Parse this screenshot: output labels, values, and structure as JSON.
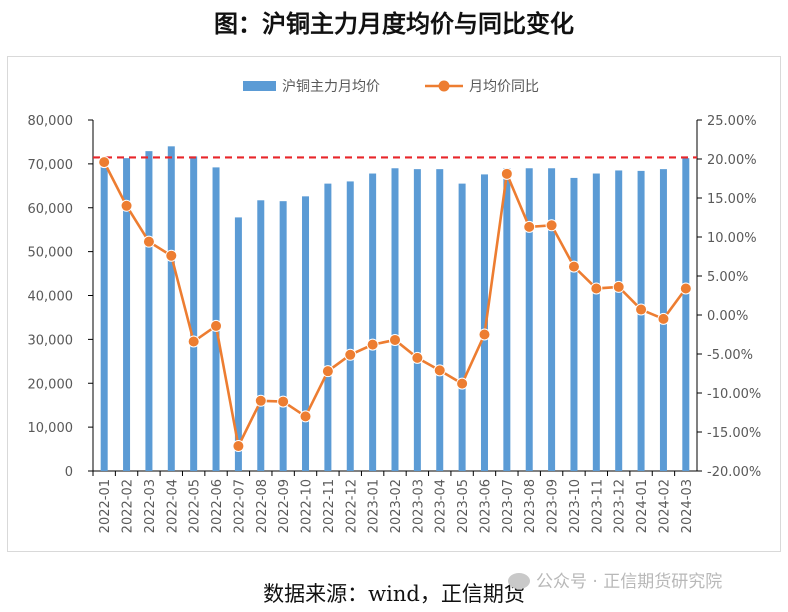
{
  "title": "图：沪铜主力月度均价与同比变化",
  "source": "数据来源：wind，正信期货",
  "watermark": "公众号 · 正信期货研究院",
  "chart_data": {
    "type": "bar+line",
    "categories": [
      "2022-01",
      "2022-02",
      "2022-03",
      "2022-04",
      "2022-05",
      "2022-06",
      "2022-07",
      "2022-08",
      "2022-09",
      "2022-10",
      "2022-11",
      "2022-12",
      "2023-01",
      "2023-02",
      "2023-03",
      "2023-04",
      "2023-05",
      "2023-06",
      "2023-07",
      "2023-08",
      "2023-09",
      "2023-10",
      "2023-11",
      "2023-12",
      "2024-01",
      "2024-02",
      "2024-03"
    ],
    "series": [
      {
        "name": "沪铜主力月均价",
        "type": "bar",
        "axis": "left",
        "color": "#5b9bd5",
        "values": [
          70000,
          71300,
          72900,
          74000,
          71700,
          69200,
          57800,
          61700,
          61500,
          62600,
          65500,
          66000,
          67800,
          69000,
          68800,
          68800,
          65500,
          67600,
          69000,
          69000,
          69000,
          66800,
          67800,
          68500,
          68400,
          68800,
          71300
        ]
      },
      {
        "name": "月均价同比",
        "type": "line",
        "axis": "right",
        "color": "#ed7d31",
        "values": [
          19.6,
          14.0,
          9.4,
          7.6,
          -3.4,
          -1.4,
          -16.8,
          -11.0,
          -11.1,
          -13.0,
          -7.2,
          -5.1,
          -3.8,
          -3.2,
          -5.5,
          -7.1,
          -8.8,
          -2.5,
          18.1,
          11.3,
          11.5,
          6.2,
          3.4,
          3.6,
          0.7,
          -0.5,
          3.4
        ]
      }
    ],
    "left_axis": {
      "ylim": [
        0,
        80000
      ],
      "ticks": [
        "0",
        "10,000",
        "20,000",
        "30,000",
        "40,000",
        "50,000",
        "60,000",
        "70,000",
        "80,000"
      ]
    },
    "right_axis": {
      "ylim": [
        -20,
        25
      ],
      "ticks": [
        "-20.00%",
        "-15.00%",
        "-10.00%",
        "-5.00%",
        "0.00%",
        "5.00%",
        "10.00%",
        "15.00%",
        "20.00%",
        "25.00%"
      ]
    },
    "reference_line": {
      "axis": "right",
      "value": 20.2,
      "color": "#e8262a",
      "style": "dashed"
    },
    "legend": {
      "placement": "top"
    },
    "grid": false
  }
}
